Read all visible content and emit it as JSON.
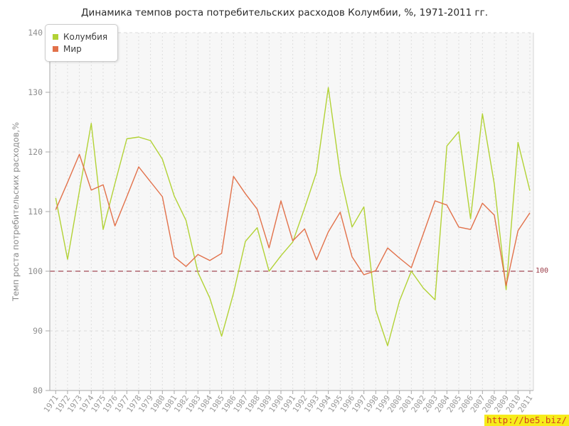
{
  "title": "Динамика темпов роста потребительских расходов Колумбии, %, 1971-2011 гг.",
  "ylabel": "Темп роста потребительских расходов,%",
  "legend": {
    "items": [
      {
        "label": "Колумбия",
        "color": "#b2d235"
      },
      {
        "label": "Мир",
        "color": "#e2714a"
      }
    ]
  },
  "reference_line": {
    "value": 100,
    "label": "100",
    "color": "#a24a56"
  },
  "watermark": {
    "text": "http://be5.biz/",
    "bg": "#f6ec1a",
    "fg": "#d2421e"
  },
  "colors": {
    "plot_bg": "#f7f7f7",
    "h_grid": "#dcdcdc",
    "v_grid": "#dddddd",
    "axis": "#a8a8a8",
    "plot_border": "#d6d6d6",
    "tick_label": "#8f8f8f",
    "x_label": "#999999"
  },
  "chart_data": {
    "type": "line",
    "title": "Динамика темпов роста потребительских расходов Колумбии, %, 1971-2011 гг.",
    "xlabel": "",
    "ylabel": "Темп роста потребительских расходов,%",
    "ylim": [
      80,
      140
    ],
    "yticks": [
      80,
      90,
      100,
      110,
      120,
      130,
      140
    ],
    "grid": true,
    "legend_position": "top-left",
    "x": [
      1971,
      1972,
      1973,
      1974,
      1975,
      1976,
      1977,
      1978,
      1979,
      1980,
      1981,
      1982,
      1983,
      1984,
      1985,
      1986,
      1987,
      1988,
      1989,
      1990,
      1991,
      1992,
      1993,
      1994,
      1995,
      1996,
      1997,
      1998,
      1999,
      2000,
      2001,
      2002,
      2003,
      2004,
      2005,
      2006,
      2007,
      2008,
      2009,
      2010,
      2011
    ],
    "series": [
      {
        "id": "colombia",
        "name": "Колумбия",
        "color": "#b2d235",
        "values": [
          112.3,
          102.0,
          113.4,
          124.8,
          107.0,
          114.7,
          122.2,
          122.5,
          121.9,
          118.8,
          112.6,
          108.5,
          99.8,
          95.5,
          89.1,
          96.3,
          105.0,
          107.3,
          100.0,
          102.6,
          104.9,
          110.6,
          116.6,
          130.8,
          116.3,
          107.4,
          110.8,
          93.5,
          87.5,
          95.0,
          100.0,
          97.2,
          95.2,
          121.0,
          123.4,
          108.8,
          126.4,
          114.6,
          96.9,
          121.6,
          113.5
        ]
      },
      {
        "id": "world",
        "name": "Мир",
        "color": "#e2714a",
        "values": [
          110.3,
          114.9,
          119.6,
          113.6,
          114.5,
          107.6,
          112.5,
          117.5,
          115.0,
          112.5,
          102.4,
          100.8,
          102.8,
          101.8,
          103.0,
          115.9,
          113.0,
          110.4,
          103.9,
          111.8,
          105.1,
          107.1,
          101.9,
          106.6,
          109.9,
          102.4,
          99.4,
          100.1,
          103.9,
          102.2,
          100.6,
          106.2,
          111.8,
          111.1,
          107.4,
          107.0,
          111.4,
          109.4,
          97.6,
          106.8,
          109.8
        ]
      }
    ],
    "reference_line": {
      "value": 100,
      "label": "100"
    }
  }
}
